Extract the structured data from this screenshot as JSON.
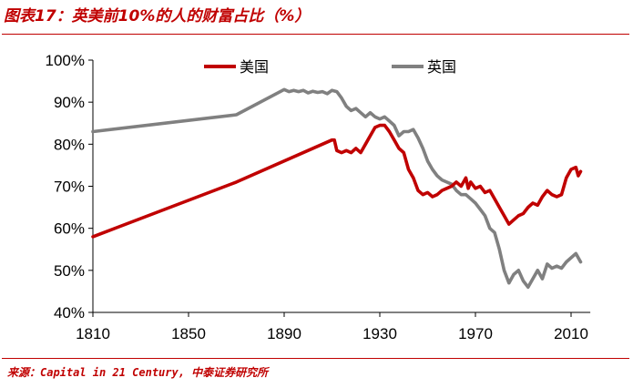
{
  "figure": {
    "title": "图表17：英美前10%的人的财富占比（%）",
    "source": "来源：Capital in 21 Century, 中泰证券研究所",
    "title_color": "#c00000"
  },
  "chart_data": {
    "type": "line",
    "title": "",
    "xlabel": "",
    "ylabel": "",
    "xlim": [
      1810,
      2015
    ],
    "ylim": [
      40,
      100
    ],
    "x_ticks": [
      "1810",
      "1850",
      "1890",
      "1930",
      "1970",
      "2010"
    ],
    "y_ticks": [
      "40%",
      "50%",
      "60%",
      "70%",
      "80%",
      "90%",
      "100%"
    ],
    "grid": false,
    "legend_position": "top",
    "series": [
      {
        "name": "美国",
        "color": "#c00000",
        "points": [
          [
            1810,
            58
          ],
          [
            1870,
            71
          ],
          [
            1910,
            81
          ],
          [
            1911,
            81
          ],
          [
            1912,
            78.5
          ],
          [
            1914,
            78
          ],
          [
            1916,
            78.5
          ],
          [
            1918,
            78
          ],
          [
            1920,
            79
          ],
          [
            1922,
            78
          ],
          [
            1924,
            80
          ],
          [
            1926,
            82
          ],
          [
            1928,
            84
          ],
          [
            1930,
            84.5
          ],
          [
            1932,
            84.5
          ],
          [
            1934,
            83
          ],
          [
            1936,
            81
          ],
          [
            1938,
            79
          ],
          [
            1940,
            78
          ],
          [
            1942,
            74
          ],
          [
            1944,
            72
          ],
          [
            1946,
            69
          ],
          [
            1948,
            68
          ],
          [
            1950,
            68.5
          ],
          [
            1952,
            67.5
          ],
          [
            1954,
            68
          ],
          [
            1956,
            69
          ],
          [
            1958,
            69.5
          ],
          [
            1960,
            70
          ],
          [
            1962,
            71
          ],
          [
            1964,
            70
          ],
          [
            1966,
            72
          ],
          [
            1967,
            69.5
          ],
          [
            1968,
            71
          ],
          [
            1970,
            69.5
          ],
          [
            1972,
            70
          ],
          [
            1974,
            68.5
          ],
          [
            1976,
            69
          ],
          [
            1978,
            67
          ],
          [
            1980,
            65
          ],
          [
            1982,
            63
          ],
          [
            1984,
            61
          ],
          [
            1986,
            62
          ],
          [
            1988,
            63
          ],
          [
            1990,
            63.5
          ],
          [
            1992,
            65
          ],
          [
            1994,
            66
          ],
          [
            1996,
            65.5
          ],
          [
            1998,
            67.5
          ],
          [
            2000,
            69
          ],
          [
            2002,
            68
          ],
          [
            2004,
            67.5
          ],
          [
            2006,
            68
          ],
          [
            2008,
            72
          ],
          [
            2010,
            74
          ],
          [
            2012,
            74.5
          ],
          [
            2013,
            72.5
          ],
          [
            2014,
            73.5
          ]
        ]
      },
      {
        "name": "英国",
        "color": "#808080",
        "points": [
          [
            1810,
            83
          ],
          [
            1870,
            87
          ],
          [
            1890,
            93
          ],
          [
            1892,
            92.5
          ],
          [
            1894,
            92.8
          ],
          [
            1896,
            92.5
          ],
          [
            1898,
            92.8
          ],
          [
            1900,
            92.2
          ],
          [
            1902,
            92.6
          ],
          [
            1904,
            92.3
          ],
          [
            1906,
            92.5
          ],
          [
            1908,
            92
          ],
          [
            1910,
            92.8
          ],
          [
            1912,
            92.5
          ],
          [
            1914,
            91
          ],
          [
            1916,
            89
          ],
          [
            1918,
            88
          ],
          [
            1920,
            88.5
          ],
          [
            1922,
            87.5
          ],
          [
            1924,
            86.5
          ],
          [
            1926,
            87.5
          ],
          [
            1928,
            86.5
          ],
          [
            1930,
            86
          ],
          [
            1932,
            86.5
          ],
          [
            1934,
            85.5
          ],
          [
            1936,
            84.5
          ],
          [
            1938,
            82
          ],
          [
            1940,
            83
          ],
          [
            1942,
            83
          ],
          [
            1944,
            83.5
          ],
          [
            1946,
            81.5
          ],
          [
            1948,
            79
          ],
          [
            1950,
            76
          ],
          [
            1952,
            74
          ],
          [
            1954,
            72.5
          ],
          [
            1956,
            71.5
          ],
          [
            1958,
            71
          ],
          [
            1960,
            70.5
          ],
          [
            1962,
            69
          ],
          [
            1964,
            68
          ],
          [
            1966,
            68
          ],
          [
            1968,
            67
          ],
          [
            1970,
            66
          ],
          [
            1972,
            64.5
          ],
          [
            1974,
            63
          ],
          [
            1976,
            60
          ],
          [
            1978,
            59
          ],
          [
            1980,
            55
          ],
          [
            1982,
            50
          ],
          [
            1984,
            47
          ],
          [
            1986,
            49
          ],
          [
            1988,
            50
          ],
          [
            1990,
            47.5
          ],
          [
            1992,
            46
          ],
          [
            1994,
            48
          ],
          [
            1996,
            50
          ],
          [
            1998,
            48
          ],
          [
            2000,
            51.5
          ],
          [
            2002,
            50.5
          ],
          [
            2004,
            51
          ],
          [
            2006,
            50.5
          ],
          [
            2008,
            52
          ],
          [
            2010,
            53
          ],
          [
            2012,
            54
          ],
          [
            2014,
            52
          ]
        ]
      }
    ]
  }
}
